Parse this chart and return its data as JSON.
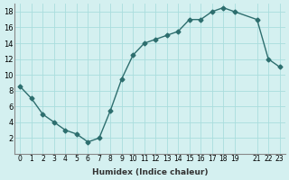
{
  "x": [
    0,
    1,
    2,
    3,
    4,
    5,
    6,
    7,
    8,
    9,
    10,
    11,
    12,
    13,
    14,
    15,
    16,
    17,
    18,
    19,
    21,
    22,
    23
  ],
  "y": [
    8.5,
    7,
    5,
    4,
    3,
    2.5,
    1.5,
    2,
    5.5,
    9.5,
    12.5,
    14,
    14.5,
    15,
    15.5,
    17,
    17,
    18,
    18.5,
    18,
    17,
    12,
    11
  ],
  "line_color": "#2d6e6e",
  "marker": "D",
  "marker_size": 2.5,
  "bg_color": "#d4f0f0",
  "grid_color": "#aadddd",
  "xlabel": "Humidex (Indice chaleur)",
  "xlim": [
    -0.5,
    23.5
  ],
  "ylim": [
    0,
    19
  ],
  "yticks": [
    2,
    4,
    6,
    8,
    10,
    12,
    14,
    16,
    18
  ],
  "xticks": [
    0,
    1,
    2,
    3,
    4,
    5,
    6,
    7,
    8,
    9,
    10,
    11,
    12,
    13,
    14,
    15,
    16,
    17,
    18,
    19,
    21,
    22,
    23
  ]
}
